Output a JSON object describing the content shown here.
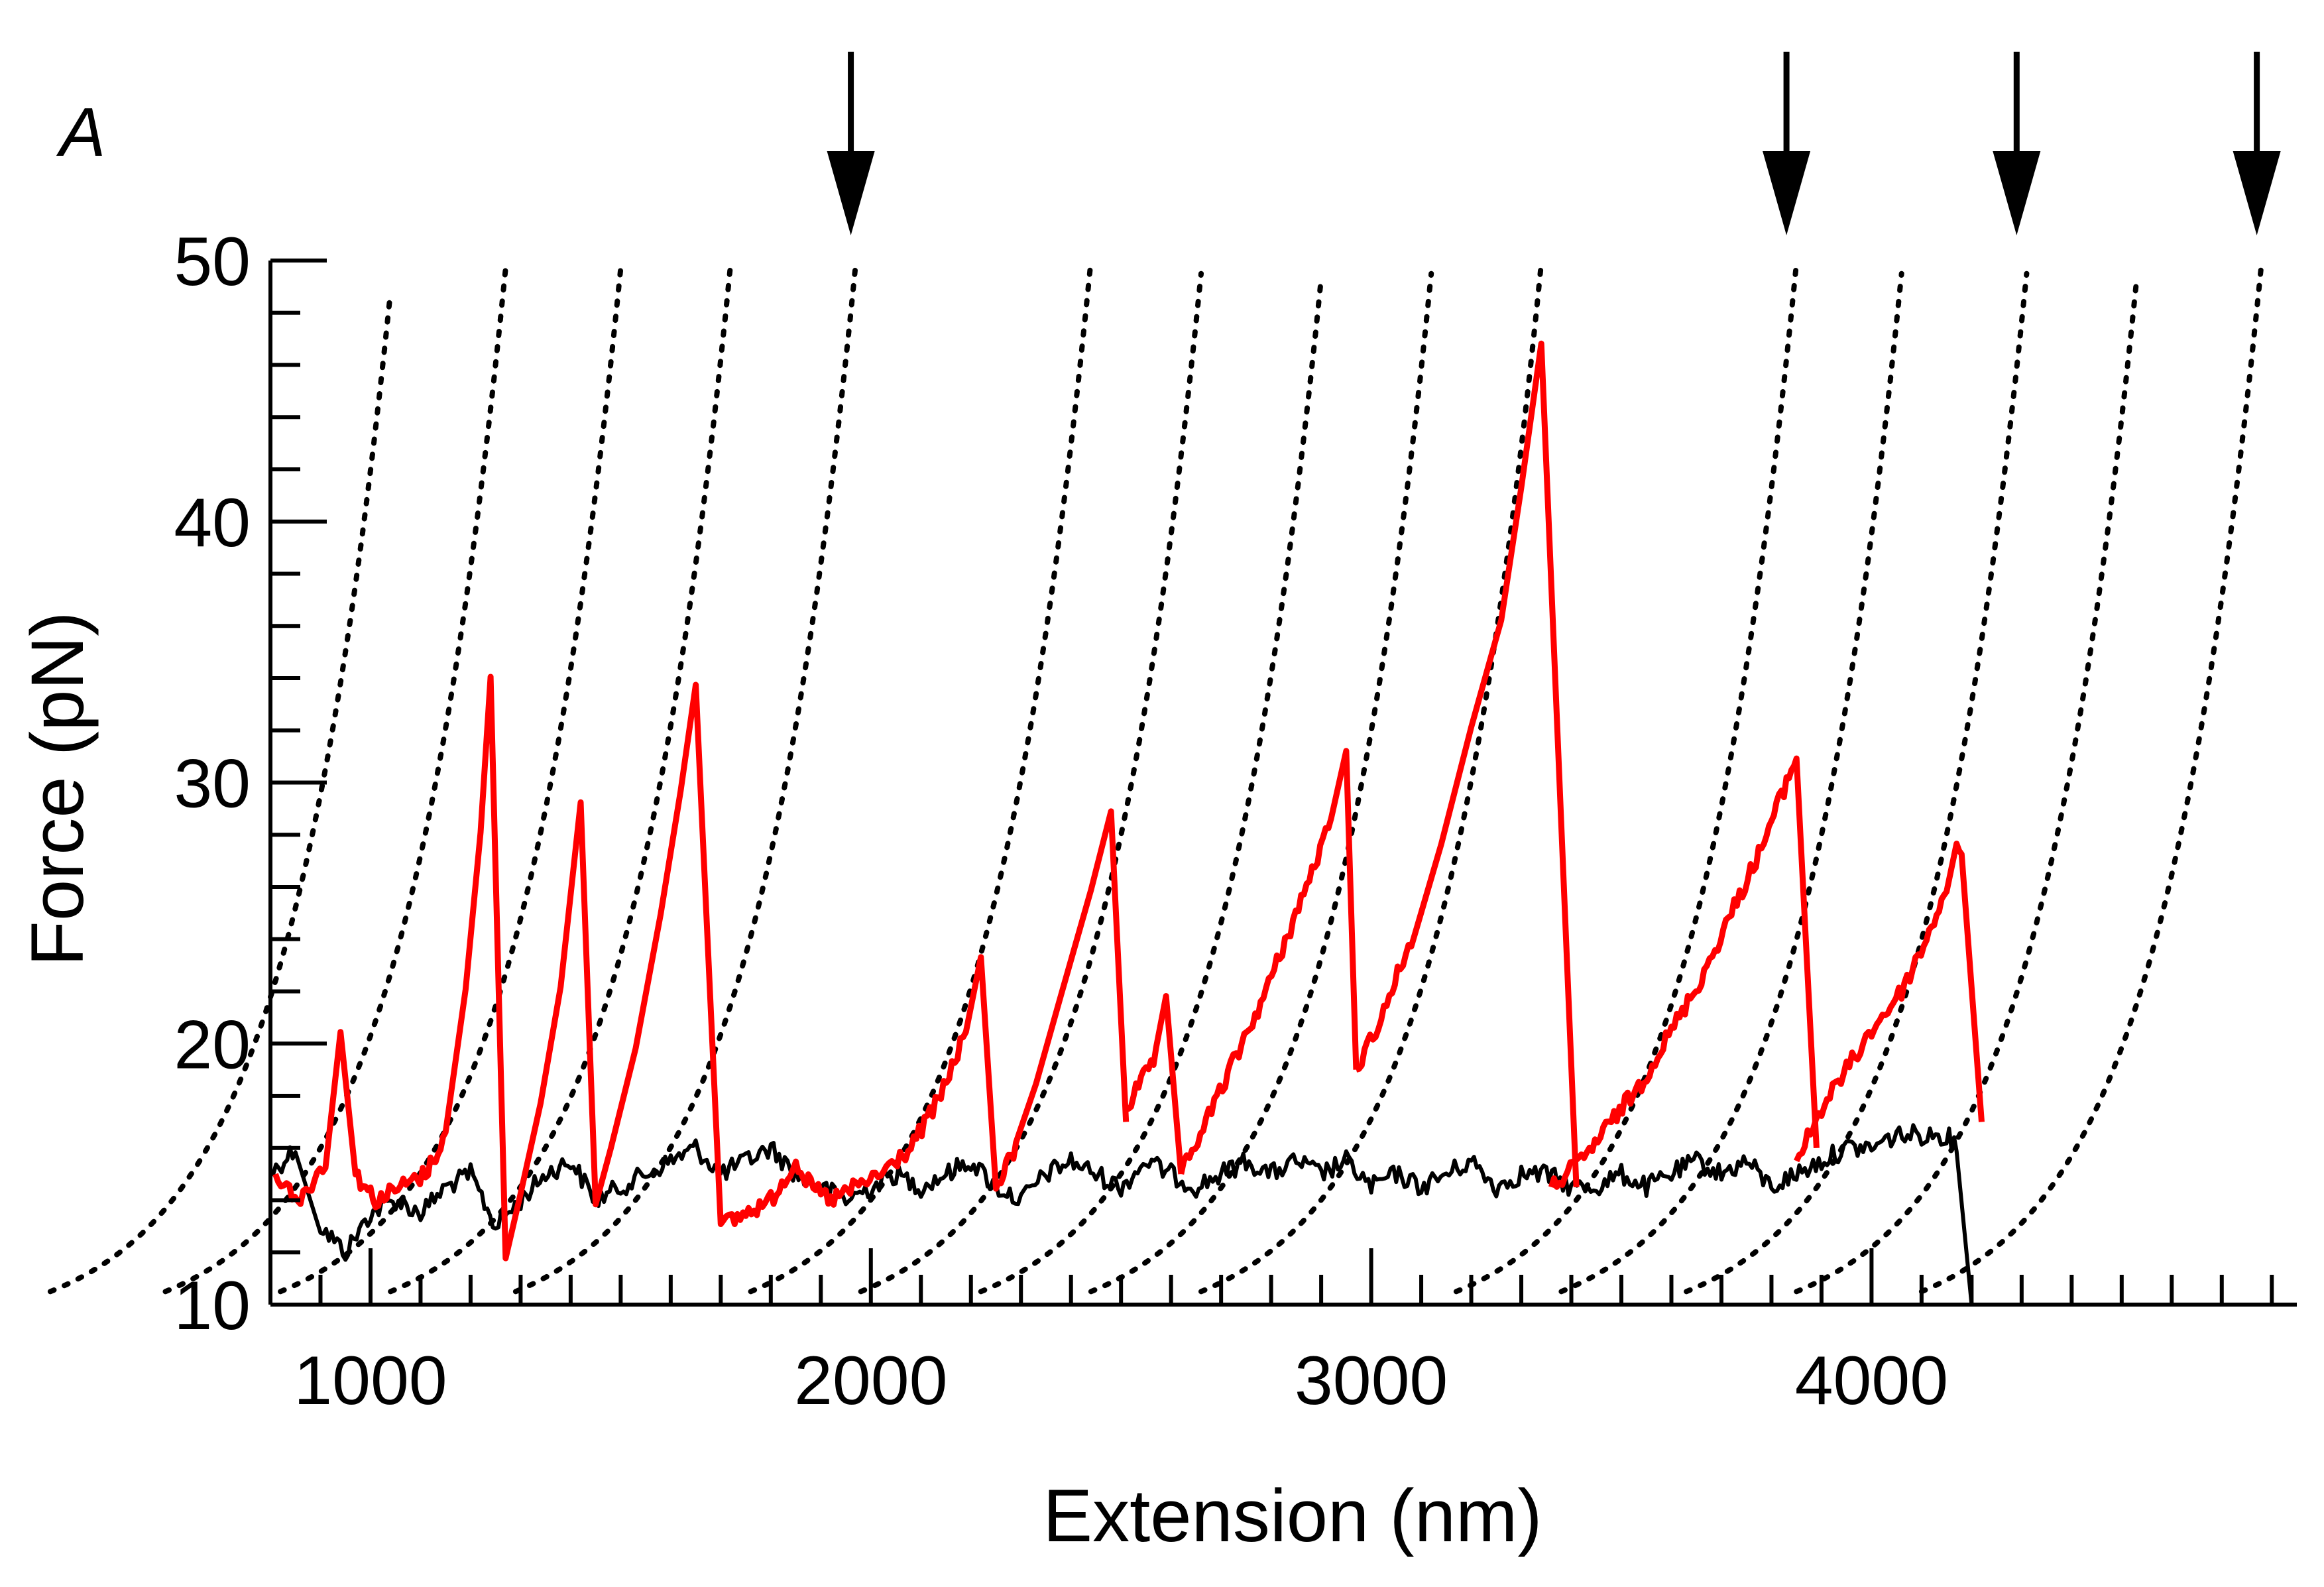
{
  "chart_data": {
    "type": "line",
    "panel_label": "A",
    "xlabel": "Extension (nm)",
    "ylabel": "Force (pN)",
    "xlim": [
      800,
      4850
    ],
    "ylim": [
      10,
      50
    ],
    "x_ticks": [
      1000,
      2000,
      3000,
      4000
    ],
    "y_ticks": [
      10,
      20,
      30,
      40,
      50
    ],
    "x_minor_step": 100,
    "y_minor_step": 2,
    "grid": false,
    "legend": "none",
    "colors": {
      "red_trace": "#ff0000",
      "black_trace": "#000000",
      "fit_curves": "#000000",
      "arrows": "#000000"
    },
    "series": [
      {
        "color": "#ff0000",
        "style": "solid-noisy",
        "segments": [
          [
            [
              810,
              15
            ],
            [
              860,
              14
            ],
            [
              910,
              15.5
            ],
            [
              940,
              20.6
            ],
            [
              970,
              15
            ],
            [
              1010,
              14
            ],
            [
              1060,
              14.5
            ],
            [
              1110,
              15
            ],
            [
              1150,
              16.5
            ],
            [
              1190,
              22
            ],
            [
              1220,
              28
            ],
            [
              1240,
              34
            ],
            [
              1270,
              12
            ],
            [
              1300,
              14
            ],
            [
              1340,
              18
            ],
            [
              1380,
              22
            ],
            [
              1420,
              29.5
            ],
            [
              1450,
              14
            ],
            [
              1480,
              16
            ],
            [
              1530,
              20
            ],
            [
              1580,
              25
            ],
            [
              1620,
              30
            ],
            [
              1650,
              34
            ],
            [
              1700,
              13
            ],
            [
              1750,
              13.5
            ],
            [
              1800,
              14
            ],
            [
              1850,
              15.5
            ],
            [
              1880,
              14.5
            ],
            [
              1920,
              14
            ],
            [
              1970,
              14.5
            ],
            [
              2020,
              15
            ],
            [
              2080,
              16
            ],
            [
              2140,
              18
            ],
            [
              2190,
              20.5
            ],
            [
              2220,
              23
            ],
            [
              2250,
              14.5
            ],
            [
              2290,
              16
            ],
            [
              2330,
              18.5
            ],
            [
              2380,
              22
            ],
            [
              2440,
              26
            ],
            [
              2480,
              29
            ],
            [
              2510,
              17
            ]
          ],
          [
            [
              2510,
              17.5
            ],
            [
              2540,
              18.5
            ],
            [
              2570,
              19.5
            ],
            [
              2590,
              21.5
            ],
            [
              2620,
              15
            ]
          ],
          [
            [
              2620,
              15
            ],
            [
              2670,
              17
            ],
            [
              2730,
              19.5
            ],
            [
              2790,
              22
            ],
            [
              2860,
              25.5
            ],
            [
              2920,
              28.5
            ],
            [
              2950,
              31.5
            ],
            [
              2970,
              19
            ]
          ],
          [
            [
              2970,
              19
            ],
            [
              3020,
              21
            ],
            [
              3080,
              24
            ],
            [
              3140,
              27.5
            ],
            [
              3200,
              32
            ],
            [
              3260,
              36
            ],
            [
              3300,
              41
            ],
            [
              3340,
              47
            ],
            [
              3410,
              14.5
            ]
          ],
          [
            [
              3360,
              14.5
            ],
            [
              3420,
              15.5
            ],
            [
              3480,
              17
            ],
            [
              3540,
              18.5
            ],
            [
              3600,
              20.5
            ],
            [
              3660,
              22.5
            ],
            [
              3720,
              25
            ],
            [
              3780,
              27.5
            ],
            [
              3820,
              29.5
            ],
            [
              3850,
              31
            ],
            [
              3890,
              16
            ]
          ],
          [
            [
              3850,
              15.5
            ],
            [
              3900,
              17.5
            ],
            [
              3950,
              19
            ],
            [
              4000,
              20.5
            ],
            [
              4060,
              22
            ],
            [
              4110,
              24
            ],
            [
              4150,
              26
            ],
            [
              4170,
              27.5
            ],
            [
              4180,
              27
            ],
            [
              4220,
              17
            ]
          ]
        ]
      },
      {
        "color": "#000000",
        "style": "solid-noisy",
        "points": [
          [
            800,
            15
          ],
          [
            850,
            16
          ],
          [
            900,
            13
          ],
          [
            950,
            12
          ],
          [
            1000,
            13.5
          ],
          [
            1050,
            14
          ],
          [
            1100,
            13.5
          ],
          [
            1150,
            14.5
          ],
          [
            1200,
            15
          ],
          [
            1250,
            13
          ],
          [
            1300,
            14
          ],
          [
            1350,
            15
          ],
          [
            1400,
            15.5
          ],
          [
            1450,
            14
          ],
          [
            1500,
            14.5
          ],
          [
            1550,
            15
          ],
          [
            1600,
            15.5
          ],
          [
            1650,
            16
          ],
          [
            1700,
            15
          ],
          [
            1750,
            15.5
          ],
          [
            1800,
            16
          ],
          [
            1850,
            15
          ],
          [
            1900,
            14.5
          ],
          [
            1950,
            14
          ],
          [
            2000,
            14.5
          ],
          [
            2050,
            15
          ],
          [
            2100,
            14.5
          ],
          [
            2150,
            15
          ],
          [
            2200,
            15.5
          ],
          [
            2250,
            14.5
          ],
          [
            2300,
            14
          ],
          [
            2350,
            15
          ],
          [
            2400,
            15.5
          ],
          [
            2450,
            15
          ],
          [
            2500,
            14.5
          ],
          [
            2550,
            15.5
          ],
          [
            2600,
            15
          ],
          [
            2650,
            14.5
          ],
          [
            2700,
            15
          ],
          [
            2750,
            15.5
          ],
          [
            2800,
            15
          ],
          [
            2850,
            15.5
          ],
          [
            2900,
            15
          ],
          [
            2950,
            15.5
          ],
          [
            3000,
            14.5
          ],
          [
            3050,
            15
          ],
          [
            3100,
            14.5
          ],
          [
            3150,
            15
          ],
          [
            3200,
            15.5
          ],
          [
            3250,
            14.5
          ],
          [
            3300,
            15
          ],
          [
            3350,
            15
          ],
          [
            3400,
            14.5
          ],
          [
            3450,
            14.5
          ],
          [
            3500,
            15
          ],
          [
            3550,
            14.5
          ],
          [
            3600,
            15
          ],
          [
            3650,
            15.5
          ],
          [
            3700,
            15
          ],
          [
            3750,
            15.5
          ],
          [
            3800,
            14.5
          ],
          [
            3850,
            15
          ],
          [
            3900,
            15.5
          ],
          [
            3950,
            16
          ],
          [
            4000,
            16
          ],
          [
            4050,
            16.5
          ],
          [
            4100,
            16.5
          ],
          [
            4150,
            16.5
          ],
          [
            4170,
            16
          ],
          [
            4200,
            10
          ]
        ]
      }
    ],
    "fit_curves": [
      {
        "x_end": 1040,
        "y_end": 48.8
      },
      {
        "x_end": 1270,
        "y_end": 49.7
      },
      {
        "x_end": 1500,
        "y_end": 49.7
      },
      {
        "x_end": 1720,
        "y_end": 49.9
      },
      {
        "x_end": 1970,
        "y_end": 49.9
      },
      {
        "x_end": 2440,
        "y_end": 50
      },
      {
        "x_end": 2660,
        "y_end": 49.5
      },
      {
        "x_end": 2900,
        "y_end": 49.3
      },
      {
        "x_end": 3120,
        "y_end": 49.5
      },
      {
        "x_end": 3340,
        "y_end": 49.9
      },
      {
        "x_end": 3850,
        "y_end": 49.9
      },
      {
        "x_end": 4060,
        "y_end": 49.5
      },
      {
        "x_end": 4310,
        "y_end": 49.5
      },
      {
        "x_end": 4530,
        "y_end": 49.3
      },
      {
        "x_end": 4780,
        "y_end": 50
      }
    ],
    "arrows_x": [
      1960,
      3830,
      4290,
      4770
    ]
  }
}
